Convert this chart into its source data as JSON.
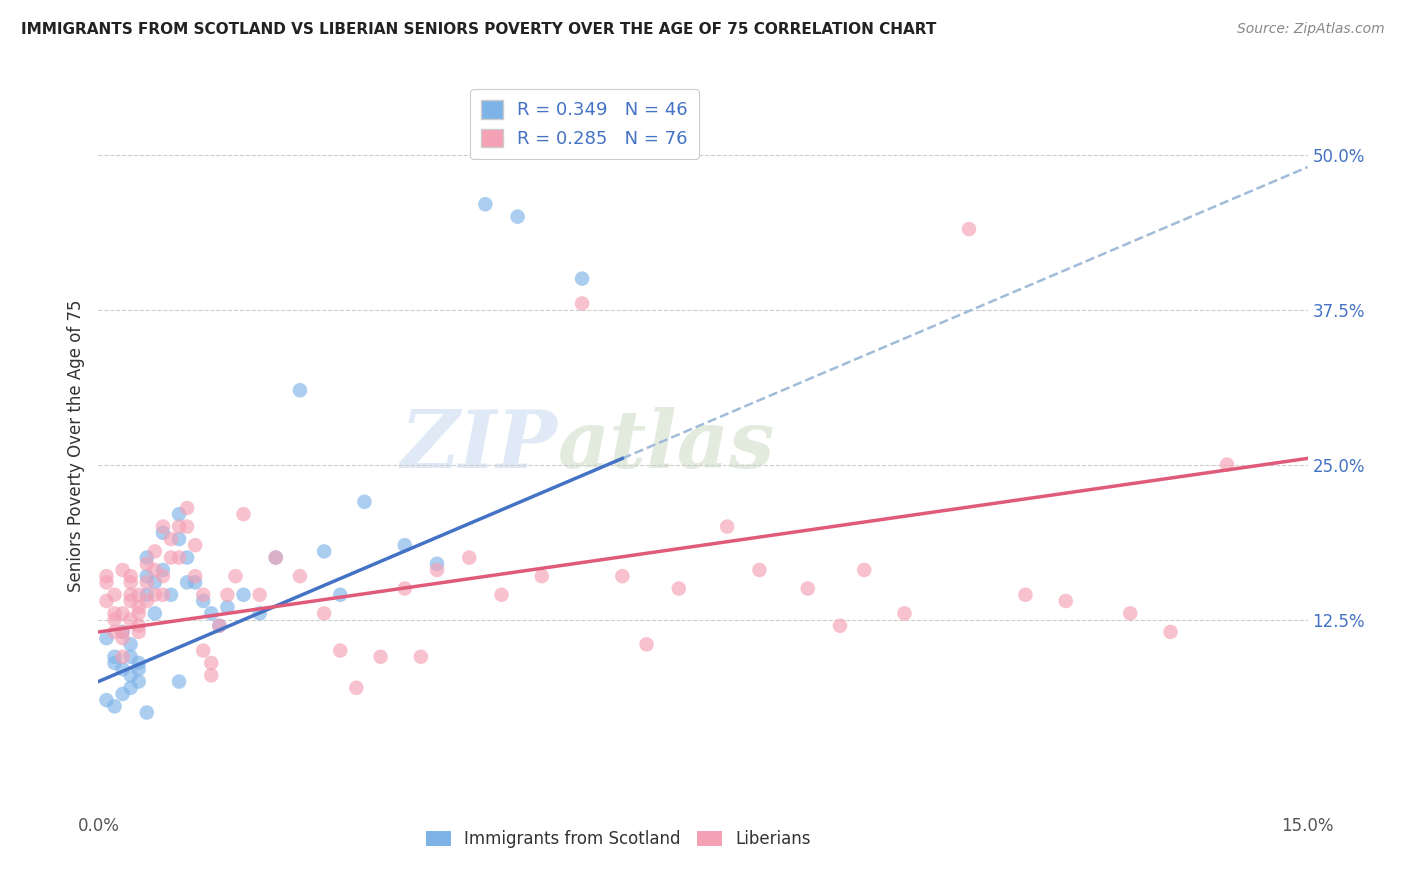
{
  "title": "IMMIGRANTS FROM SCOTLAND VS LIBERIAN SENIORS POVERTY OVER THE AGE OF 75 CORRELATION CHART",
  "source": "Source: ZipAtlas.com",
  "ylabel": "Seniors Poverty Over the Age of 75",
  "xlim": [
    0.0,
    0.15
  ],
  "ylim": [
    -0.03,
    0.56
  ],
  "yticks_right": [
    0.125,
    0.25,
    0.375,
    0.5
  ],
  "ytick_labels_right": [
    "12.5%",
    "25.0%",
    "37.5%",
    "50.0%"
  ],
  "legend_r1": "R = 0.349",
  "legend_n1": "N = 46",
  "legend_r2": "R = 0.285",
  "legend_n2": "N = 76",
  "color_scotland": "#7eb3e8",
  "color_liberia": "#f4a0b5",
  "color_line_scotland": "#4472c4",
  "color_line_liberia": "#e05a7a",
  "color_dashed": "#a0bcd8",
  "color_legend_text": "#4472c4",
  "watermark_zip": "ZIP",
  "watermark_atlas": "atlas",
  "scotland_x": [
    0.001,
    0.002,
    0.002,
    0.003,
    0.003,
    0.004,
    0.004,
    0.004,
    0.005,
    0.005,
    0.005,
    0.006,
    0.006,
    0.006,
    0.007,
    0.007,
    0.008,
    0.008,
    0.009,
    0.01,
    0.01,
    0.011,
    0.011,
    0.012,
    0.013,
    0.014,
    0.015,
    0.016,
    0.018,
    0.02,
    0.022,
    0.025,
    0.028,
    0.03,
    0.033,
    0.038,
    0.042,
    0.048,
    0.052,
    0.06,
    0.001,
    0.002,
    0.003,
    0.004,
    0.006,
    0.01
  ],
  "scotland_y": [
    0.11,
    0.09,
    0.095,
    0.115,
    0.085,
    0.08,
    0.105,
    0.095,
    0.075,
    0.09,
    0.085,
    0.145,
    0.16,
    0.175,
    0.155,
    0.13,
    0.195,
    0.165,
    0.145,
    0.21,
    0.19,
    0.155,
    0.175,
    0.155,
    0.14,
    0.13,
    0.12,
    0.135,
    0.145,
    0.13,
    0.175,
    0.31,
    0.18,
    0.145,
    0.22,
    0.185,
    0.17,
    0.46,
    0.45,
    0.4,
    0.06,
    0.055,
    0.065,
    0.07,
    0.05,
    0.075
  ],
  "liberia_x": [
    0.001,
    0.001,
    0.001,
    0.002,
    0.002,
    0.002,
    0.002,
    0.003,
    0.003,
    0.003,
    0.003,
    0.003,
    0.004,
    0.004,
    0.004,
    0.004,
    0.004,
    0.005,
    0.005,
    0.005,
    0.005,
    0.005,
    0.006,
    0.006,
    0.006,
    0.007,
    0.007,
    0.007,
    0.008,
    0.008,
    0.008,
    0.009,
    0.009,
    0.01,
    0.01,
    0.011,
    0.011,
    0.012,
    0.012,
    0.013,
    0.013,
    0.014,
    0.014,
    0.015,
    0.016,
    0.017,
    0.018,
    0.02,
    0.022,
    0.025,
    0.028,
    0.03,
    0.032,
    0.035,
    0.038,
    0.04,
    0.042,
    0.046,
    0.05,
    0.055,
    0.06,
    0.065,
    0.068,
    0.072,
    0.078,
    0.082,
    0.088,
    0.092,
    0.095,
    0.1,
    0.108,
    0.115,
    0.12,
    0.128,
    0.133,
    0.14
  ],
  "liberia_y": [
    0.155,
    0.14,
    0.16,
    0.13,
    0.115,
    0.145,
    0.125,
    0.095,
    0.11,
    0.115,
    0.165,
    0.13,
    0.145,
    0.125,
    0.155,
    0.16,
    0.14,
    0.12,
    0.135,
    0.145,
    0.13,
    0.115,
    0.155,
    0.17,
    0.14,
    0.18,
    0.145,
    0.165,
    0.145,
    0.2,
    0.16,
    0.175,
    0.19,
    0.2,
    0.175,
    0.215,
    0.2,
    0.185,
    0.16,
    0.145,
    0.1,
    0.09,
    0.08,
    0.12,
    0.145,
    0.16,
    0.21,
    0.145,
    0.175,
    0.16,
    0.13,
    0.1,
    0.07,
    0.095,
    0.15,
    0.095,
    0.165,
    0.175,
    0.145,
    0.16,
    0.38,
    0.16,
    0.105,
    0.15,
    0.2,
    0.165,
    0.15,
    0.12,
    0.165,
    0.13,
    0.44,
    0.145,
    0.14,
    0.13,
    0.115,
    0.25
  ],
  "scotland_line_x0": 0.0,
  "scotland_line_x1": 0.065,
  "scotland_line_y0": 0.075,
  "scotland_line_y1": 0.255,
  "dashed_line_x0": 0.065,
  "dashed_line_x1": 0.15,
  "dashed_line_y0": 0.255,
  "dashed_line_y1": 0.49,
  "liberia_line_x0": 0.0,
  "liberia_line_x1": 0.15,
  "liberia_line_y0": 0.115,
  "liberia_line_y1": 0.255
}
